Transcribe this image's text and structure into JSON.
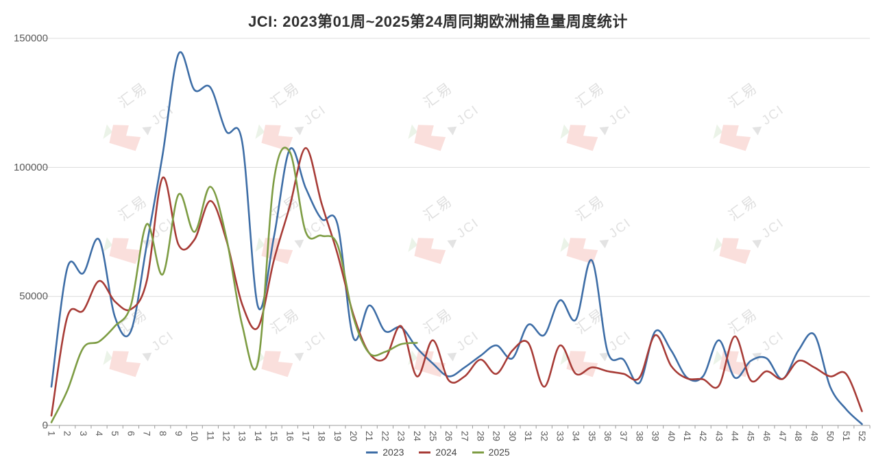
{
  "chart": {
    "title": "JCI: 2023第01周~2025第24周同期欧洲捕鱼量周度统计"
  },
  "watermark": {
    "text_line1": "汇易",
    "text_line2": "JCI"
  },
  "colors": {
    "series_2023": "#3d6da6",
    "series_2024": "#a73b36",
    "series_2025": "#7d9c43",
    "gridline": "#dcdcdc",
    "axis": "#9b9b9b",
    "tick_label": "#595959",
    "title_text": "#2f2f2f",
    "watermark_pink": "#f6c5c0",
    "watermark_gray": "#c9c9c9"
  },
  "chart_data": {
    "type": "line",
    "title": "JCI: 2023第01周~2025第24周同期欧洲捕鱼量周度统计",
    "xlabel": "",
    "ylabel": "",
    "x": [
      1,
      2,
      3,
      4,
      5,
      6,
      7,
      8,
      9,
      10,
      11,
      12,
      13,
      14,
      15,
      16,
      17,
      18,
      19,
      20,
      21,
      22,
      23,
      24,
      25,
      26,
      27,
      28,
      29,
      30,
      31,
      32,
      33,
      34,
      35,
      36,
      37,
      38,
      39,
      40,
      41,
      42,
      43,
      44,
      45,
      46,
      47,
      48,
      49,
      50,
      51,
      52
    ],
    "ylim": [
      0,
      150000
    ],
    "yticks": [
      0,
      50000,
      100000,
      150000
    ],
    "grid": true,
    "line_smoothing": "spline",
    "x_label_rotation_deg": 90,
    "legend_position": "bottom",
    "series": [
      {
        "name": "2023",
        "color": "#3d6da6",
        "values": [
          15000,
          61000,
          59000,
          72000,
          42000,
          36500,
          70000,
          105000,
          144000,
          130000,
          131000,
          114000,
          110000,
          46000,
          73000,
          107000,
          92000,
          80000,
          78000,
          34000,
          46500,
          36500,
          38000,
          30000,
          24000,
          19000,
          22500,
          27000,
          31000,
          26000,
          39000,
          35000,
          48500,
          41000,
          64000,
          28500,
          25500,
          16500,
          36500,
          29000,
          18500,
          19000,
          33000,
          18500,
          25000,
          26000,
          18000,
          29000,
          35200,
          15000,
          6300,
          500
        ]
      },
      {
        "name": "2024",
        "color": "#a73b36",
        "values": [
          3800,
          42000,
          44500,
          56000,
          48000,
          45000,
          56000,
          96000,
          70000,
          72000,
          87000,
          72000,
          47000,
          38000,
          64000,
          85000,
          107500,
          86000,
          66500,
          43000,
          28000,
          26000,
          38500,
          19000,
          33000,
          17500,
          19000,
          25500,
          20000,
          29000,
          32000,
          15000,
          31000,
          20000,
          22500,
          21000,
          20000,
          18500,
          35000,
          23000,
          18200,
          17900,
          15400,
          34500,
          17500,
          21000,
          18000,
          25000,
          22500,
          19000,
          20000,
          5500
        ]
      },
      {
        "name": "2025",
        "color": "#7d9c43",
        "values": [
          1200,
          13500,
          30000,
          32500,
          38500,
          46500,
          78000,
          58500,
          89500,
          75000,
          92500,
          73000,
          39000,
          24500,
          95000,
          106000,
          75000,
          73500,
          70000,
          42000,
          28000,
          28500,
          31500,
          32000
        ]
      }
    ]
  }
}
